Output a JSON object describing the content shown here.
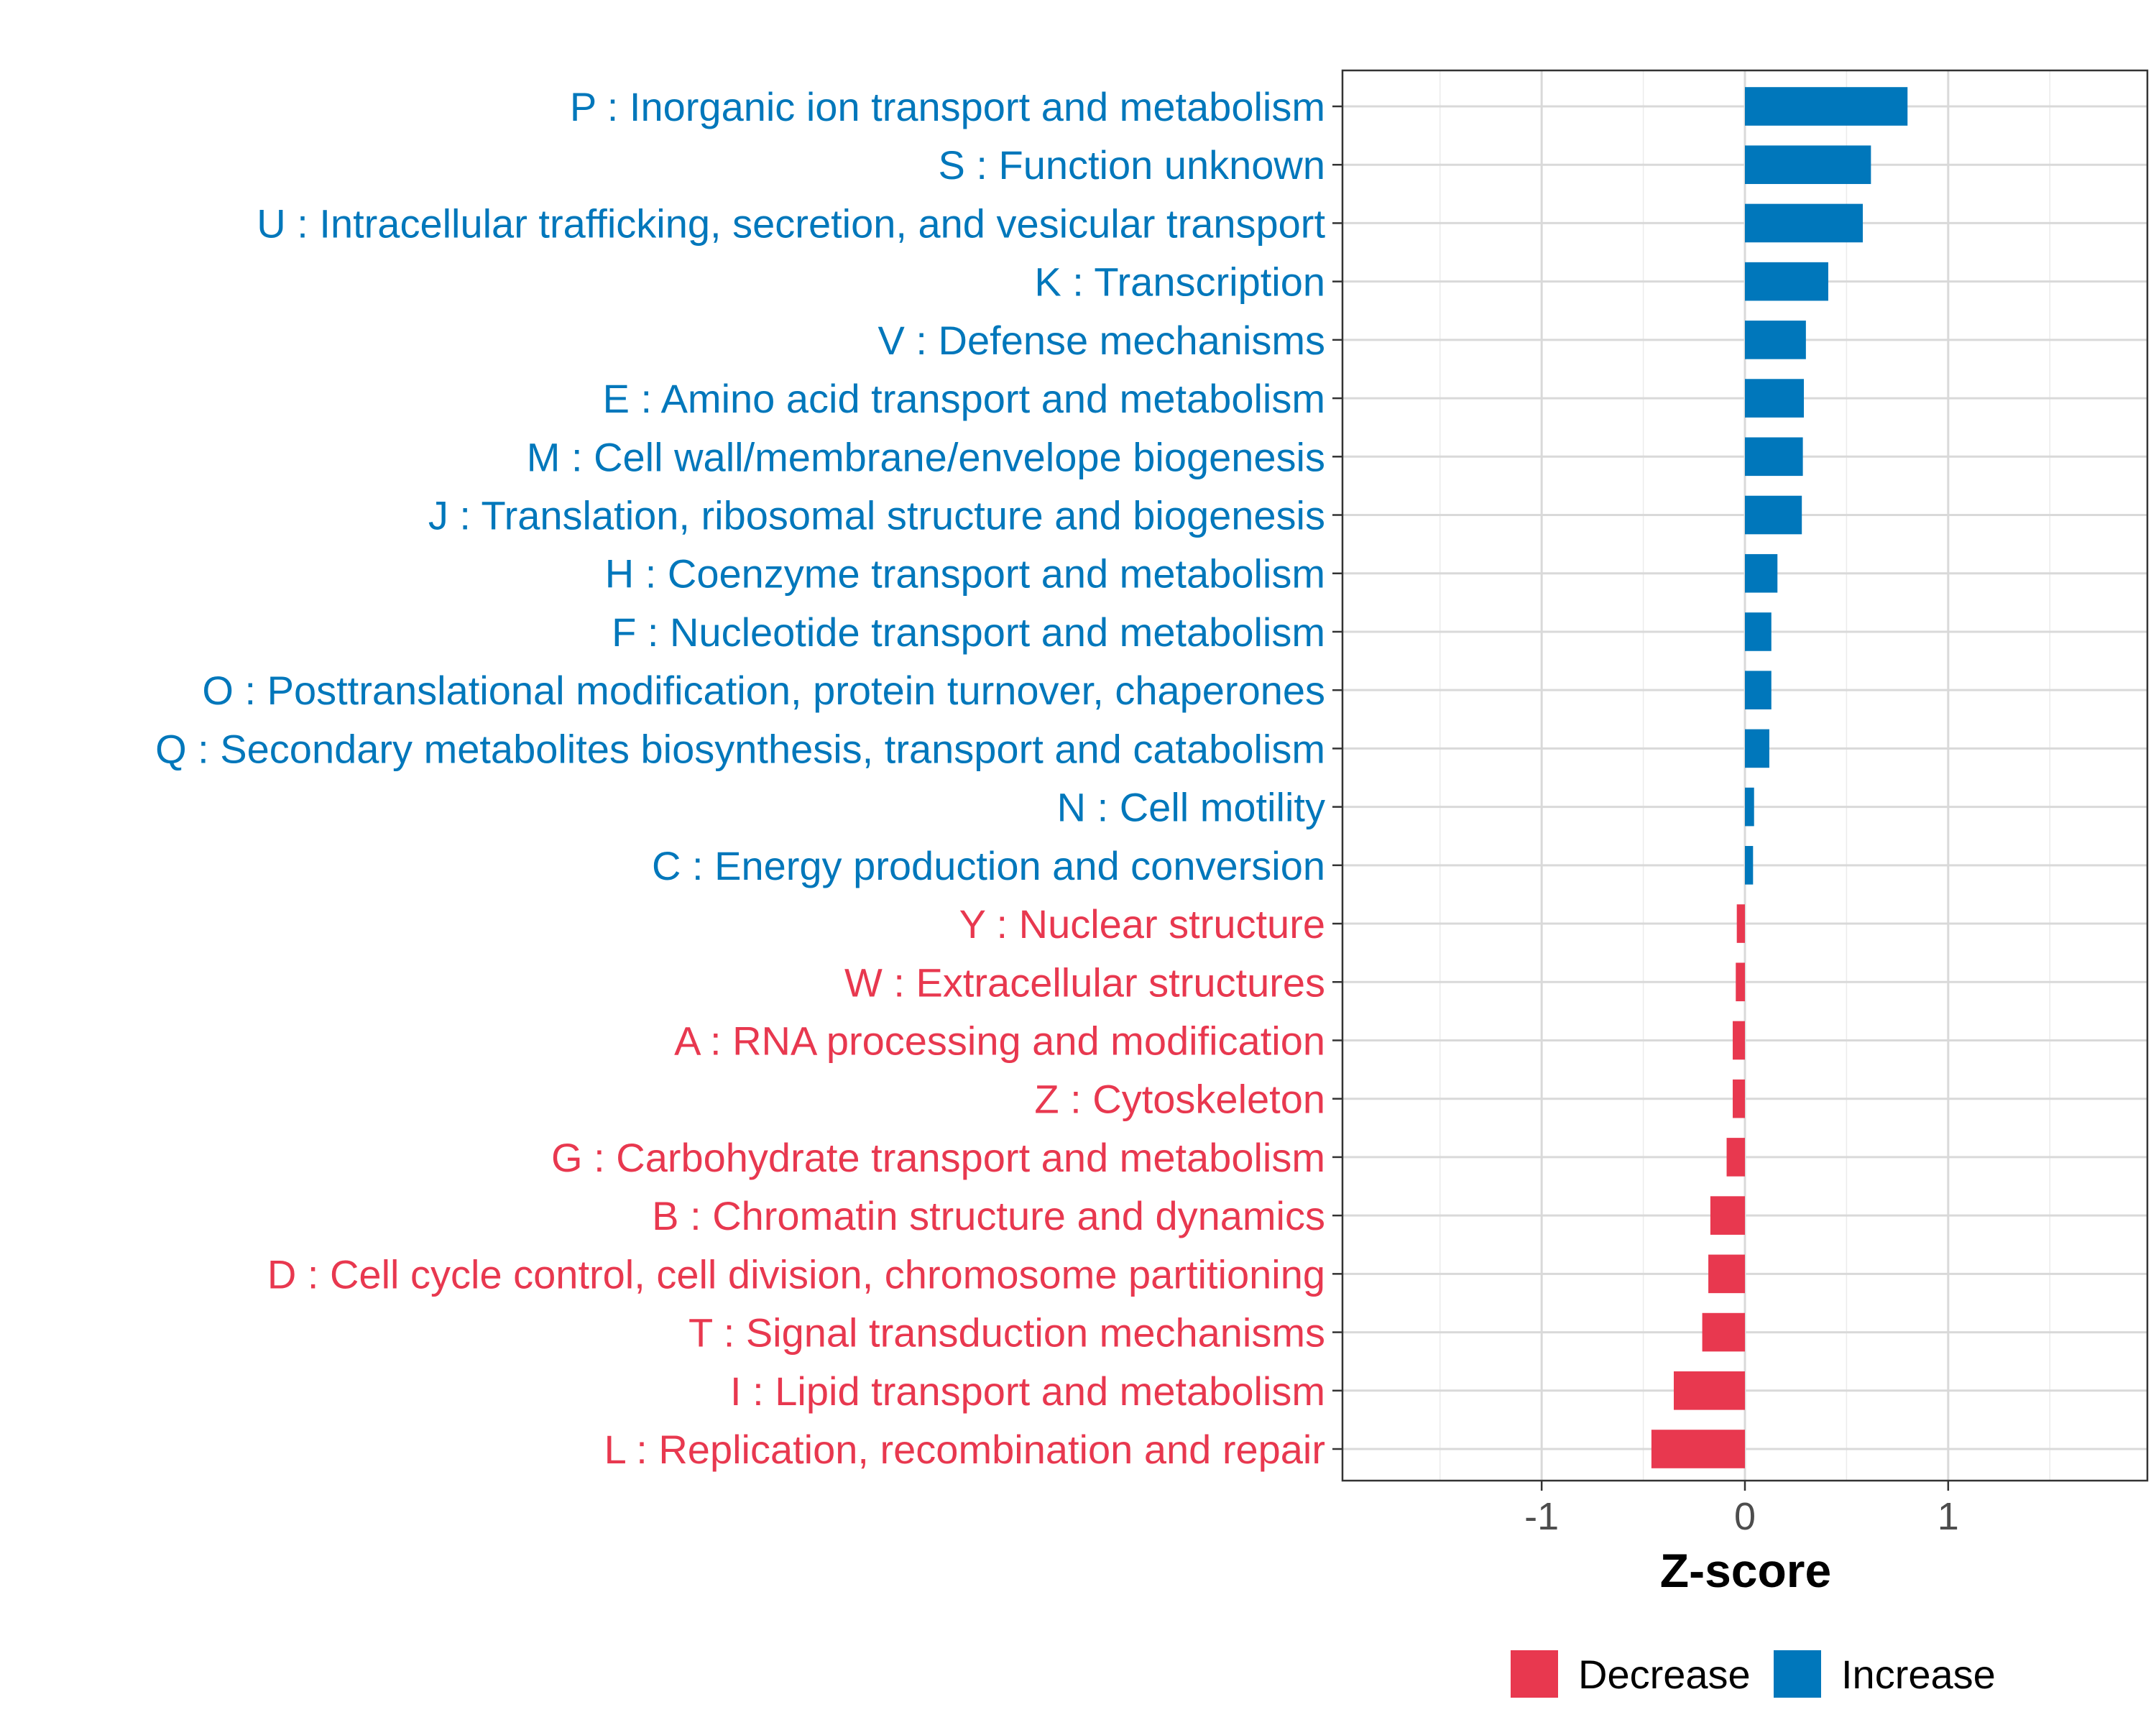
{
  "chart_data": {
    "type": "bar",
    "orientation": "horizontal",
    "xlabel": "Z-score",
    "xlim": [
      -1.98,
      1.98
    ],
    "xticks": [
      -1,
      0,
      1
    ],
    "xtick_labels": [
      "-1",
      "0",
      "1"
    ],
    "grid": true,
    "legend_position": "bottom",
    "colors": {
      "Decrease": "#e8384f",
      "Increase": "#0077bb"
    },
    "legend": [
      {
        "key": "Decrease",
        "label": "Decrease"
      },
      {
        "key": "Increase",
        "label": "Increase"
      }
    ],
    "bars": [
      {
        "label": "P : Inorganic ion transport and metabolism",
        "value": 0.8,
        "group": "Increase"
      },
      {
        "label": "S : Function unknown",
        "value": 0.62,
        "group": "Increase"
      },
      {
        "label": "U : Intracellular trafficking, secretion, and vesicular transport",
        "value": 0.58,
        "group": "Increase"
      },
      {
        "label": "K : Transcription",
        "value": 0.41,
        "group": "Increase"
      },
      {
        "label": "V : Defense mechanisms",
        "value": 0.3,
        "group": "Increase"
      },
      {
        "label": "E : Amino acid transport and metabolism",
        "value": 0.29,
        "group": "Increase"
      },
      {
        "label": "M : Cell wall/membrane/envelope biogenesis",
        "value": 0.285,
        "group": "Increase"
      },
      {
        "label": "J : Translation, ribosomal structure and biogenesis",
        "value": 0.28,
        "group": "Increase"
      },
      {
        "label": "H : Coenzyme transport and metabolism",
        "value": 0.16,
        "group": "Increase"
      },
      {
        "label": "F : Nucleotide transport and metabolism",
        "value": 0.13,
        "group": "Increase"
      },
      {
        "label": "O : Posttranslational modification, protein turnover, chaperones",
        "value": 0.13,
        "group": "Increase"
      },
      {
        "label": "Q : Secondary metabolites biosynthesis, transport and catabolism",
        "value": 0.12,
        "group": "Increase"
      },
      {
        "label": "N : Cell motility",
        "value": 0.045,
        "group": "Increase"
      },
      {
        "label": "C : Energy production and conversion",
        "value": 0.04,
        "group": "Increase"
      },
      {
        "label": "Y : Nuclear structure",
        "value": -0.04,
        "group": "Decrease"
      },
      {
        "label": "W : Extracellular structures",
        "value": -0.045,
        "group": "Decrease"
      },
      {
        "label": "A : RNA processing and modification",
        "value": -0.06,
        "group": "Decrease"
      },
      {
        "label": "Z : Cytoskeleton",
        "value": -0.06,
        "group": "Decrease"
      },
      {
        "label": "G : Carbohydrate transport and metabolism",
        "value": -0.09,
        "group": "Decrease"
      },
      {
        "label": "B : Chromatin structure and dynamics",
        "value": -0.17,
        "group": "Decrease"
      },
      {
        "label": "D : Cell cycle control, cell division, chromosome partitioning",
        "value": -0.18,
        "group": "Decrease"
      },
      {
        "label": "T : Signal transduction mechanisms",
        "value": -0.21,
        "group": "Decrease"
      },
      {
        "label": "I : Lipid transport and metabolism",
        "value": -0.35,
        "group": "Decrease"
      },
      {
        "label": "L : Replication, recombination and repair",
        "value": -0.46,
        "group": "Decrease"
      }
    ]
  }
}
